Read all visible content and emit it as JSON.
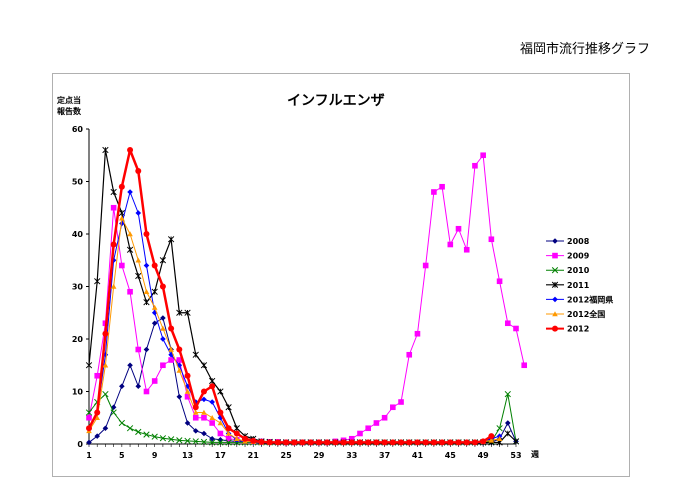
{
  "page_title": "福岡市流行推移グラフ",
  "chart_data": {
    "type": "line",
    "title": "インフルエンザ",
    "ylabel_lines": [
      "定点当",
      "報告数"
    ],
    "xlabel": "週",
    "xlim": [
      1,
      53
    ],
    "ylim": [
      0,
      60
    ],
    "yticks": [
      0,
      10,
      20,
      30,
      40,
      50,
      60
    ],
    "xticks": [
      1,
      5,
      9,
      13,
      17,
      21,
      25,
      29,
      33,
      37,
      41,
      45,
      49,
      53
    ],
    "grid": false,
    "legend_position": "right",
    "series": [
      {
        "name": "2008",
        "color": "#000080",
        "marker": "diamond",
        "width": 1,
        "values": [
          0.3,
          1.5,
          3,
          7,
          11,
          15,
          11,
          18,
          23,
          24,
          18,
          9,
          4,
          2.5,
          2,
          1,
          0.8,
          0.6,
          0.5,
          0.4,
          0.3,
          0.2,
          0.2,
          0.2,
          0.2,
          0.2,
          0.2,
          0.2,
          0.2,
          0.2,
          0.2,
          0.2,
          0.2,
          0.2,
          0.2,
          0.2,
          0.2,
          0.2,
          0.2,
          0.2,
          0.2,
          0.2,
          0.2,
          0.2,
          0.2,
          0.2,
          0.2,
          0.2,
          0.2,
          0.3,
          1,
          4,
          0.5
        ]
      },
      {
        "name": "2009",
        "color": "#ff00ff",
        "marker": "square",
        "width": 1,
        "values": [
          5,
          13,
          23,
          45,
          34,
          29,
          18,
          10,
          12,
          15,
          16,
          16,
          9,
          5,
          5,
          4,
          2,
          1,
          0.8,
          0.6,
          0.5,
          0.5,
          0.4,
          0.4,
          0.3,
          0.3,
          0.3,
          0.3,
          0.3,
          0.3,
          0.5,
          0.7,
          1,
          2,
          3,
          4,
          5,
          7,
          8,
          17,
          21,
          34,
          48,
          49,
          38,
          41,
          37,
          53,
          55,
          39,
          31,
          23,
          22,
          15
        ]
      },
      {
        "name": "2010",
        "color": "#008000",
        "marker": "x",
        "width": 1,
        "values": [
          6,
          8,
          9.5,
          6,
          4,
          3,
          2.3,
          1.8,
          1.4,
          1.1,
          0.9,
          0.7,
          0.6,
          0.5,
          0.4,
          0.3,
          0.3,
          0.3,
          0.3,
          0.3,
          0.3,
          0.3,
          0.3,
          0.3,
          0.3,
          0.3,
          0.3,
          0.3,
          0.3,
          0.3,
          0.3,
          0.3,
          0.3,
          0.3,
          0.3,
          0.3,
          0.3,
          0.3,
          0.3,
          0.3,
          0.3,
          0.3,
          0.3,
          0.3,
          0.3,
          0.3,
          0.3,
          0.3,
          0.3,
          0.5,
          3,
          9.5,
          0.5
        ]
      },
      {
        "name": "2011",
        "color": "#000000",
        "marker": "star",
        "width": 1.2,
        "values": [
          15,
          31,
          56,
          48,
          44,
          37,
          32,
          27,
          29,
          35,
          39,
          25,
          25,
          17,
          15,
          12,
          10,
          7,
          3,
          1.5,
          1,
          0.5,
          0.4,
          0.3,
          0.3,
          0.3,
          0.3,
          0.3,
          0.3,
          0.3,
          0.3,
          0.3,
          0.3,
          0.3,
          0.3,
          0.3,
          0.3,
          0.3,
          0.3,
          0.3,
          0.3,
          0.3,
          0.3,
          0.3,
          0.3,
          0.3,
          0.3,
          0.3,
          0.3,
          0.3,
          0.3,
          2,
          0.5
        ]
      },
      {
        "name": "2012福岡県",
        "color": "#0000ff",
        "marker": "diamond",
        "width": 1,
        "values": [
          3,
          6,
          17,
          35,
          42,
          48,
          44,
          34,
          25,
          20,
          17,
          15,
          11,
          8,
          8.5,
          8,
          5,
          2,
          0.8,
          0.5,
          0.4,
          0.3,
          0.3,
          0.3,
          0.3,
          0.3,
          0.3,
          0.3,
          0.3,
          0.3,
          0.3,
          0.3,
          0.3,
          0.3,
          0.3,
          0.3,
          0.3,
          0.3,
          0.3,
          0.3,
          0.3,
          0.3,
          0.3,
          0.3,
          0.3,
          0.3,
          0.3,
          0.3,
          0.5,
          1,
          1.5
        ]
      },
      {
        "name": "2012全国",
        "color": "#ff9900",
        "marker": "triangle",
        "width": 1,
        "values": [
          2.5,
          5,
          15,
          30,
          43,
          40,
          35,
          29,
          26,
          22,
          18,
          14,
          10,
          6,
          6,
          5,
          4,
          2,
          1,
          0.5,
          0.4,
          0.3,
          0.3,
          0.3,
          0.3,
          0.3,
          0.3,
          0.3,
          0.3,
          0.3,
          0.3,
          0.3,
          0.3,
          0.3,
          0.3,
          0.3,
          0.3,
          0.3,
          0.3,
          0.3,
          0.3,
          0.3,
          0.3,
          0.3,
          0.3,
          0.3,
          0.3,
          0.3,
          0.4,
          0.7,
          1
        ]
      },
      {
        "name": "2012",
        "color": "#ff0000",
        "marker": "circle",
        "width": 2.5,
        "values": [
          3,
          6,
          21,
          38,
          49,
          56,
          52,
          40,
          34,
          30,
          22,
          18,
          13,
          7,
          10,
          11,
          6,
          3,
          2,
          1,
          0.6,
          0.4,
          0.3,
          0.3,
          0.3,
          0.3,
          0.3,
          0.3,
          0.3,
          0.3,
          0.3,
          0.3,
          0.3,
          0.3,
          0.3,
          0.3,
          0.3,
          0.3,
          0.3,
          0.3,
          0.3,
          0.3,
          0.3,
          0.3,
          0.3,
          0.3,
          0.3,
          0.3,
          0.5,
          1.5
        ]
      }
    ]
  }
}
